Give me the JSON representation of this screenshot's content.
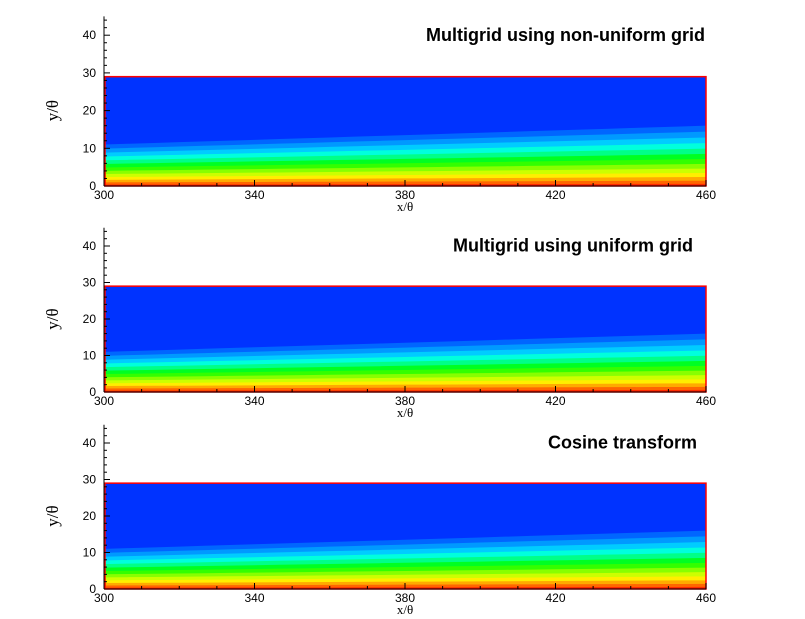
{
  "colors": {
    "field_blue": "#0033ff",
    "border": "#ff0000",
    "levels": [
      "#ff2a00",
      "#ff6600",
      "#ffaa00",
      "#ffee00",
      "#ccff00",
      "#88ff00",
      "#33ff00",
      "#00ff22",
      "#00ff88",
      "#00ffdd",
      "#00ccff",
      "#0099ff",
      "#0066ff",
      "#0033ff"
    ]
  },
  "chart_data": [
    {
      "type": "heatmap",
      "title": "Multigrid using non-uniform grid",
      "xlabel": "x/θ",
      "ylabel": "y/θ",
      "xlim": [
        300,
        460
      ],
      "ylim": [
        0,
        45
      ],
      "xticks": [
        "300",
        "340",
        "380",
        "420",
        "460"
      ],
      "yticks": [
        "0",
        "10",
        "20",
        "30",
        "40"
      ],
      "domain_top": 29,
      "layer_thickness": [
        11,
        16
      ]
    },
    {
      "type": "heatmap",
      "title": "Multigrid using uniform grid",
      "xlabel": "x/θ",
      "ylabel": "y/θ",
      "xlim": [
        300,
        460
      ],
      "ylim": [
        0,
        45
      ],
      "xticks": [
        "300",
        "340",
        "380",
        "420",
        "460"
      ],
      "yticks": [
        "0",
        "10",
        "20",
        "30",
        "40"
      ],
      "domain_top": 29,
      "layer_thickness": [
        11,
        16
      ]
    },
    {
      "type": "heatmap",
      "title": "Cosine transform",
      "xlabel": "x/θ",
      "ylabel": "y/θ",
      "xlim": [
        300,
        460
      ],
      "ylim": [
        0,
        45
      ],
      "xticks": [
        "300",
        "340",
        "380",
        "420",
        "460"
      ],
      "yticks": [
        "0",
        "10",
        "20",
        "30",
        "40"
      ],
      "domain_top": 29,
      "layer_thickness": [
        11,
        16
      ]
    }
  ]
}
